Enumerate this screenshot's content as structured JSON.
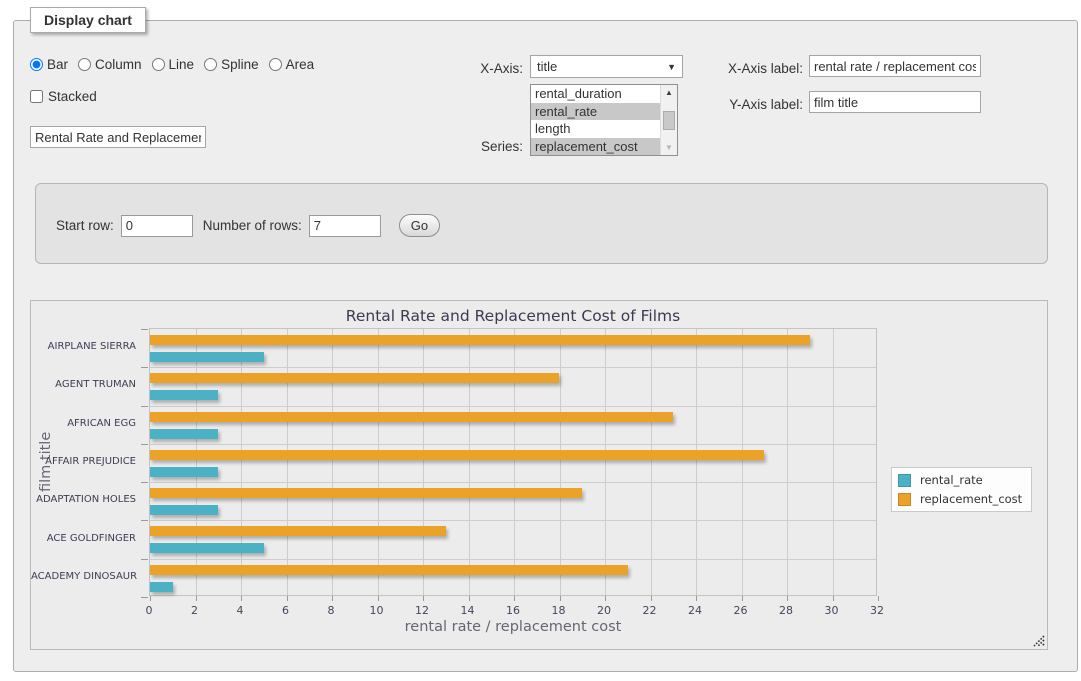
{
  "panel": {
    "legend": "Display chart"
  },
  "chart_types": {
    "options": [
      "Bar",
      "Column",
      "Line",
      "Spline",
      "Area"
    ],
    "selected": "Bar"
  },
  "stacked": {
    "label": "Stacked",
    "checked": false
  },
  "title_input": {
    "value": "Rental Rate and Replacement Cost of Films"
  },
  "x_axis": {
    "label": "X-Axis:",
    "selected": "title"
  },
  "series_select": {
    "label": "Series:",
    "options": [
      {
        "label": "rental_duration",
        "selected": false
      },
      {
        "label": "rental_rate",
        "selected": true
      },
      {
        "label": "length",
        "selected": false
      },
      {
        "label": "replacement_cost",
        "selected": true
      }
    ]
  },
  "x_axis_label": {
    "label": "X-Axis label:",
    "value": "rental rate / replacement cost"
  },
  "y_axis_label": {
    "label": "Y-Axis label:",
    "value": "film title"
  },
  "pager": {
    "start_row_label": "Start row:",
    "start_row_value": "0",
    "num_rows_label": "Number of rows:",
    "num_rows_value": "7",
    "go_label": "Go"
  },
  "colors": {
    "series_teal": "#4bb2c5",
    "series_orange": "#eaa228",
    "selection_gray": "#c8c8c8",
    "panel_bg": "#eeeeee"
  },
  "chart_data": {
    "type": "bar",
    "orientation": "horizontal",
    "title": "Rental Rate and Replacement Cost of Films",
    "xlabel": "rental rate / replacement cost",
    "ylabel": "film title",
    "categories": [
      "AIRPLANE SIERRA",
      "AGENT TRUMAN",
      "AFRICAN EGG",
      "AFFAIR PREJUDICE",
      "ADAPTATION HOLES",
      "ACE GOLDFINGER",
      "ACADEMY DINOSAUR"
    ],
    "series": [
      {
        "name": "rental_rate",
        "color": "#4bb2c5",
        "values": [
          4.99,
          2.99,
          2.99,
          2.99,
          2.99,
          4.99,
          0.99
        ]
      },
      {
        "name": "replacement_cost",
        "color": "#eaa228",
        "values": [
          28.99,
          17.99,
          22.99,
          26.99,
          18.99,
          12.99,
          20.99
        ]
      }
    ],
    "xlim": [
      0,
      32
    ],
    "xticks": [
      0,
      2,
      4,
      6,
      8,
      10,
      12,
      14,
      16,
      18,
      20,
      22,
      24,
      26,
      28,
      30,
      32
    ],
    "grid": true,
    "legend_position": "right"
  }
}
